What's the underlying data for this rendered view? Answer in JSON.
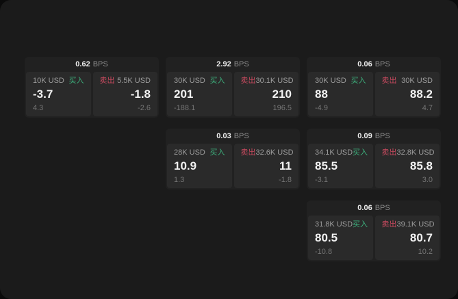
{
  "theme": {
    "outer_bg": "#0b0b0b",
    "window_bg": "#1b1b1b",
    "card_bg": "#212121",
    "panel_bg": "#2a2a2a",
    "buy_color": "#3db37e",
    "sell_color": "#c94a5f"
  },
  "cards": [
    {
      "spread": "0.62",
      "unit": "BPS",
      "buy": {
        "amount": "10K USD",
        "label": "买入",
        "price": "-3.7",
        "change": "4.3"
      },
      "sell": {
        "label": "卖出",
        "amount": "5.5K USD",
        "price": "-1.8",
        "change": "-2.6"
      }
    },
    {
      "spread": "2.92",
      "unit": "BPS",
      "buy": {
        "amount": "30K USD",
        "label": "买入",
        "price": "201",
        "change": "-188.1"
      },
      "sell": {
        "label": "卖出",
        "amount": "30.1K USD",
        "price": "210",
        "change": "196.5"
      }
    },
    {
      "spread": "0.06",
      "unit": "BPS",
      "buy": {
        "amount": "30K USD",
        "label": "买入",
        "price": "88",
        "change": "-4.9"
      },
      "sell": {
        "label": "卖出",
        "amount": "30K USD",
        "price": "88.2",
        "change": "4.7"
      }
    },
    {
      "spread": "0.03",
      "unit": "BPS",
      "buy": {
        "amount": "28K USD",
        "label": "买入",
        "price": "10.9",
        "change": "1.3"
      },
      "sell": {
        "label": "卖出",
        "amount": "32.6K USD",
        "price": "11",
        "change": "-1.8"
      }
    },
    {
      "spread": "0.09",
      "unit": "BPS",
      "buy": {
        "amount": "34.1K USD",
        "label": "买入",
        "price": "85.5",
        "change": "-3.1"
      },
      "sell": {
        "label": "卖出",
        "amount": "32.8K USD",
        "price": "85.8",
        "change": "3.0"
      }
    },
    {
      "spread": "0.06",
      "unit": "BPS",
      "buy": {
        "amount": "31.8K USD",
        "label": "买入",
        "price": "80.5",
        "change": "-10.8"
      },
      "sell": {
        "label": "卖出",
        "amount": "39.1K USD",
        "price": "80.7",
        "change": "10.2"
      }
    }
  ]
}
